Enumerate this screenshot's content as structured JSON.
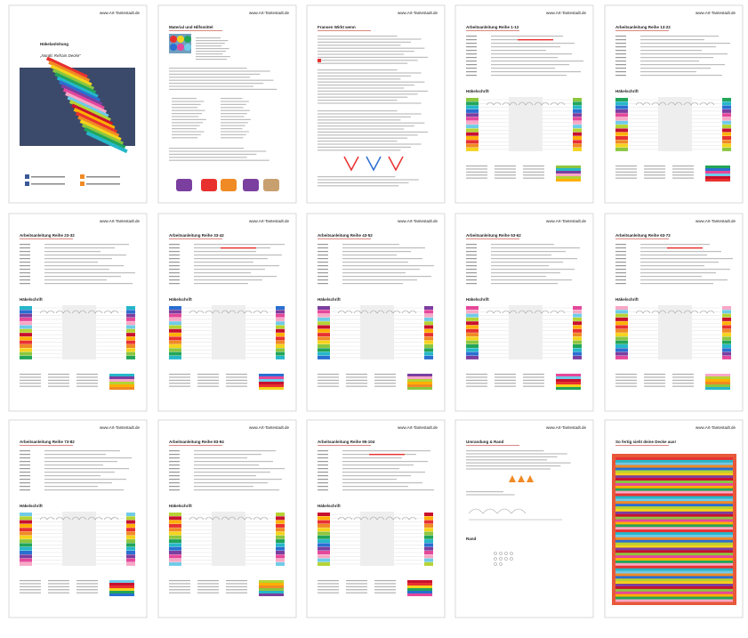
{
  "pages": [
    {
      "url": "www.Art-Tantestadt.de",
      "title": "Häkelanleitung",
      "subtitle": "„Nordic Refrain Decke“"
    },
    {
      "url": "www.Art-Tantestadt.de",
      "title": "Material und Hilfsmittel"
    },
    {
      "url": "www.Art-Tantestadt.de",
      "title": "Fransen Wirkt wenn"
    },
    {
      "url": "www.Art-Tantestadt.de",
      "title": "Arbeitsanleitung Reihe 1-12",
      "section": "Häkelschrift"
    },
    {
      "url": "www.Art-Tantestadt.de",
      "title": "Arbeitsanleitung Reihe 13-22",
      "section": "Häkelschrift"
    },
    {
      "url": "www.Art-Tantestadt.de",
      "title": "Arbeitsanleitung Reihe 23-32",
      "section": "Häkelschrift"
    },
    {
      "url": "www.Art-Tantestadt.de",
      "title": "Arbeitsanleitung Reihe 33-42",
      "section": "Häkelschrift"
    },
    {
      "url": "www.Art-Tantestadt.de",
      "title": "Arbeitsanleitung Reihe 43-52",
      "section": "Häkelschrift"
    },
    {
      "url": "www.Art-Tantestadt.de",
      "title": "Arbeitsanleitung Reihe 53-62",
      "section": "Häkelschrift"
    },
    {
      "url": "www.Art-Tantestadt.de",
      "title": "Arbeitsanleitung Reihe 63-72",
      "section": "Häkelschrift"
    },
    {
      "url": "www.Art-Tantestadt.de",
      "title": "Arbeitsanleitung Reihe 73-82",
      "section": "Häkelschrift"
    },
    {
      "url": "www.Art-Tantestadt.de",
      "title": "Arbeitsanleitung Reihe 83-94",
      "section": "Häkelschrift"
    },
    {
      "url": "www.Art-Tantestadt.de",
      "title": "Arbeitsanleitung Reihe 95-104",
      "section": "Häkelschrift"
    },
    {
      "url": "www.Art-Tantestadt.de",
      "title": "Umrandung & Rand",
      "section": "Rand"
    },
    {
      "url": "www.Art-Tantestadt.de",
      "title": "So fertig sieht deine Decke aus!"
    }
  ]
}
